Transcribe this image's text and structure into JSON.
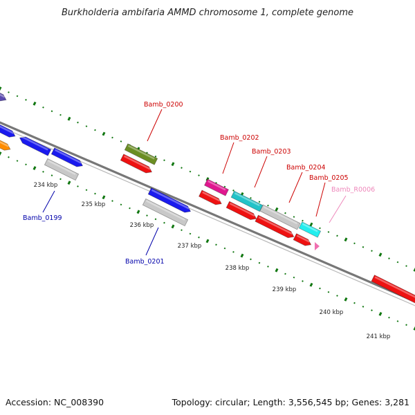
{
  "title": "Burkholderia ambifaria AMMD chromosome 1, complete genome",
  "footer": {
    "accession": "Accession: NC_008390",
    "summary": "Topology: circular; Length: 3,556,545 bp; Genes: 3,281"
  },
  "ticks": [
    "234 kbp",
    "235 kbp",
    "236 kbp",
    "237 kbp",
    "238 kbp",
    "239 kbp",
    "240 kbp",
    "241 kbp"
  ],
  "labels": [
    {
      "text": "Bamb_0199",
      "color": "#0000aa"
    },
    {
      "text": "Bamb_0200",
      "color": "#cc0000"
    },
    {
      "text": "Bamb_0201",
      "color": "#0000aa"
    },
    {
      "text": "Bamb_0202",
      "color": "#cc0000"
    },
    {
      "text": "Bamb_0203",
      "color": "#cc0000"
    },
    {
      "text": "Bamb_0204",
      "color": "#cc0000"
    },
    {
      "text": "Bamb_0205",
      "color": "#cc0000"
    },
    {
      "text": "Bamb_R0006",
      "color": "#ee88bb"
    }
  ],
  "colors": {
    "backbone": "#777777",
    "dots": "#117711",
    "blue": "#1a1aee",
    "red": "#ee1111",
    "gray": "#c8c8c8",
    "olive": "#6b8e23",
    "magenta": "#e0178f",
    "teal": "#22c3c8",
    "cyan": "#22eeee",
    "orange": "#ff8c00",
    "purple": "#5a4ab0",
    "pink": "#f070b0"
  }
}
